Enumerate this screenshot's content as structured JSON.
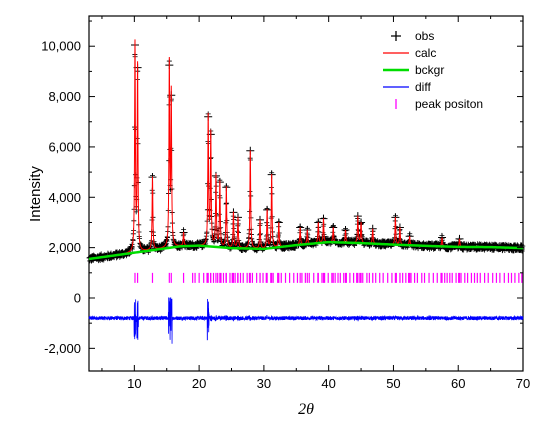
{
  "chart_data": {
    "type": "line",
    "title": "",
    "xlabel": "2θ",
    "ylabel": "Intensity",
    "xlim": [
      3,
      70
    ],
    "ylim": [
      -2900,
      11200
    ],
    "x_ticks": [
      10,
      20,
      30,
      40,
      50,
      60,
      70
    ],
    "y_ticks": [
      -2000,
      0,
      2000,
      4000,
      6000,
      8000,
      10000
    ],
    "y_tick_labels": [
      "-2,000",
      "0",
      "2,000",
      "4,000",
      "6,000",
      "8,000",
      "10,000"
    ],
    "grid": false,
    "legend_position": "top-right",
    "legend": [
      {
        "label": "obs",
        "color": "#000000",
        "marker": "plus"
      },
      {
        "label": "calc",
        "color": "#ff0000",
        "marker": "line"
      },
      {
        "label": "bckgr",
        "color": "#00dd00",
        "marker": "thick-line"
      },
      {
        "label": "diff",
        "color": "#0000ff",
        "marker": "line"
      },
      {
        "label": "peak positon",
        "color": "#ff00ff",
        "marker": "tick"
      }
    ],
    "background": {
      "x": [
        3,
        10,
        17,
        20,
        25,
        30,
        35,
        40,
        45,
        50,
        55,
        60,
        65,
        70
      ],
      "y": [
        1550,
        1800,
        2050,
        2080,
        1980,
        1950,
        2100,
        2220,
        2180,
        2120,
        2070,
        2030,
        2020,
        1980
      ]
    },
    "peaks": [
      {
        "x": 10.1,
        "y": 10050
      },
      {
        "x": 10.5,
        "y": 9150
      },
      {
        "x": 12.8,
        "y": 4800
      },
      {
        "x": 15.4,
        "y": 9250
      },
      {
        "x": 15.7,
        "y": 8050
      },
      {
        "x": 17.6,
        "y": 2600
      },
      {
        "x": 21.4,
        "y": 7200
      },
      {
        "x": 21.8,
        "y": 6500
      },
      {
        "x": 22.6,
        "y": 4850
      },
      {
        "x": 23.2,
        "y": 4600
      },
      {
        "x": 24.2,
        "y": 4400
      },
      {
        "x": 25.3,
        "y": 3400
      },
      {
        "x": 26.0,
        "y": 3200
      },
      {
        "x": 27.9,
        "y": 5850
      },
      {
        "x": 29.4,
        "y": 3100
      },
      {
        "x": 30.5,
        "y": 3500
      },
      {
        "x": 31.2,
        "y": 4900
      },
      {
        "x": 32.3,
        "y": 3000
      },
      {
        "x": 35.6,
        "y": 2800
      },
      {
        "x": 36.7,
        "y": 2700
      },
      {
        "x": 38.4,
        "y": 3000
      },
      {
        "x": 39.2,
        "y": 3150
      },
      {
        "x": 40.7,
        "y": 2800
      },
      {
        "x": 42.6,
        "y": 2700
      },
      {
        "x": 44.5,
        "y": 3250
      },
      {
        "x": 45.0,
        "y": 3000
      },
      {
        "x": 46.8,
        "y": 2750
      },
      {
        "x": 50.3,
        "y": 3200
      },
      {
        "x": 51.0,
        "y": 2800
      },
      {
        "x": 52.5,
        "y": 2450
      },
      {
        "x": 57.5,
        "y": 2400
      },
      {
        "x": 60.2,
        "y": 2350
      }
    ],
    "diff_offset": -800,
    "tick_row_y": 800
  }
}
